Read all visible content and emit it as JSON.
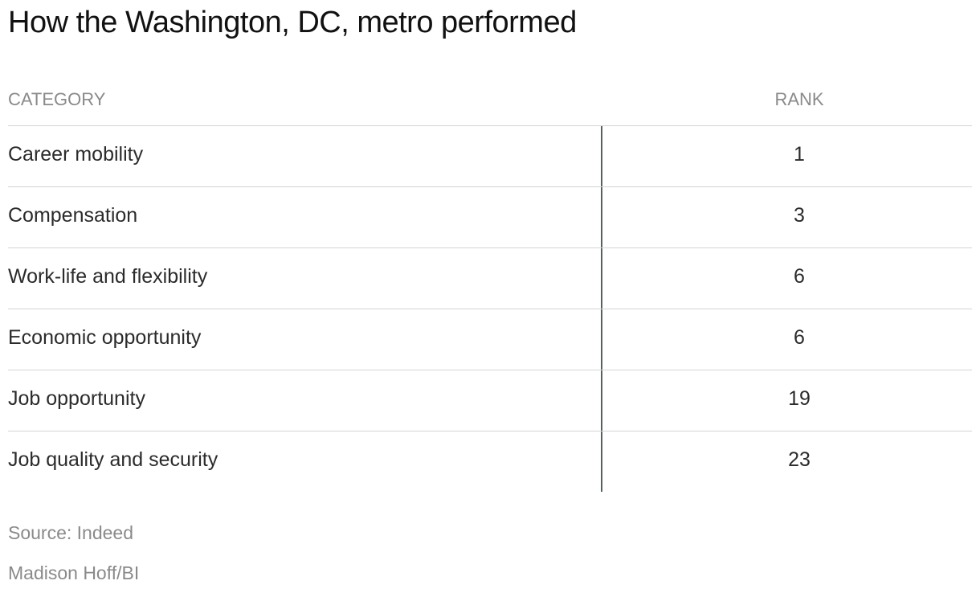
{
  "title": "How the Washington, DC, metro performed",
  "chart_data": {
    "type": "table",
    "title": "How the Washington, DC, metro performed",
    "columns": [
      "CATEGORY",
      "RANK"
    ],
    "rows": [
      {
        "category": "Career mobility",
        "rank": "1"
      },
      {
        "category": "Compensation",
        "rank": "3"
      },
      {
        "category": "Work-life and flexibility",
        "rank": "6"
      },
      {
        "category": "Economic opportunity",
        "rank": "6"
      },
      {
        "category": "Job opportunity",
        "rank": "19"
      },
      {
        "category": "Job quality and security",
        "rank": "23"
      }
    ]
  },
  "footer": {
    "source": "Source: Indeed",
    "credit": "Madison Hoff/BI"
  },
  "colors": {
    "divider": "#556061",
    "row_rule": "#d4d4d4",
    "muted_text": "#8a8a8a"
  }
}
